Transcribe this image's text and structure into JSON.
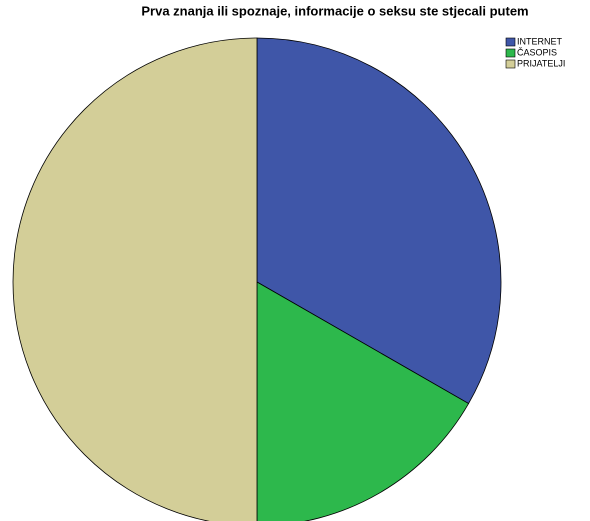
{
  "chart_data": {
    "type": "pie",
    "title": "Prva znanja ili spoznaje, informacije o seksu ste stjecali putem",
    "categories": [
      "INTERNET",
      "ČASOPIS",
      "PRIJATELJI"
    ],
    "values": [
      33.3,
      16.7,
      50
    ],
    "colors": [
      "#3f56a8",
      "#2db84c",
      "#d3ce98"
    ],
    "legend": "top-right"
  }
}
